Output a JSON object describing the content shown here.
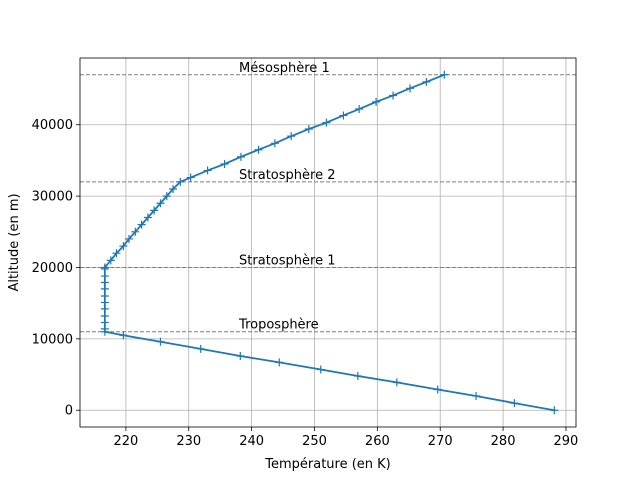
{
  "chart_data": {
    "type": "line",
    "title": "",
    "xlabel": "Température (en K)",
    "ylabel": "Altitude (en m)",
    "xlim": [
      212.7,
      291.6
    ],
    "ylim": [
      -2350,
      49350
    ],
    "xticks": [
      220,
      230,
      240,
      250,
      260,
      270,
      280,
      290
    ],
    "yticks": [
      0,
      10000,
      20000,
      30000,
      40000
    ],
    "grid": true,
    "legend": "none",
    "line_color": "#1f77b4",
    "reference_color": "#808080",
    "series": [
      {
        "marker": "+",
        "points": [
          [
            288.15,
            0
          ],
          [
            281.8,
            1000
          ],
          [
            275.7,
            2000
          ],
          [
            269.6,
            2900
          ],
          [
            263.1,
            3900
          ],
          [
            256.9,
            4800
          ],
          [
            251.0,
            5700
          ],
          [
            244.4,
            6700
          ],
          [
            238.2,
            7600
          ],
          [
            231.9,
            8600
          ],
          [
            225.5,
            9600
          ],
          [
            219.6,
            10500
          ],
          [
            216.65,
            11000
          ],
          [
            216.65,
            11400
          ],
          [
            216.65,
            12300
          ],
          [
            216.65,
            13200
          ],
          [
            216.65,
            14200
          ],
          [
            216.65,
            15100
          ],
          [
            216.65,
            16000
          ],
          [
            216.65,
            17000
          ],
          [
            216.65,
            17900
          ],
          [
            216.65,
            18800
          ],
          [
            216.65,
            19800
          ],
          [
            216.65,
            20000
          ],
          [
            217.6,
            21000
          ],
          [
            218.5,
            22000
          ],
          [
            219.6,
            23000
          ],
          [
            220.5,
            24000
          ],
          [
            221.5,
            25000
          ],
          [
            222.5,
            26000
          ],
          [
            223.5,
            27000
          ],
          [
            224.5,
            28000
          ],
          [
            225.5,
            29000
          ],
          [
            226.5,
            30000
          ],
          [
            227.5,
            31000
          ],
          [
            228.65,
            32000
          ],
          [
            230.3,
            32600
          ],
          [
            233.0,
            33600
          ],
          [
            235.7,
            34500
          ],
          [
            238.3,
            35500
          ],
          [
            241.1,
            36500
          ],
          [
            243.7,
            37400
          ],
          [
            246.3,
            38400
          ],
          [
            249.1,
            39400
          ],
          [
            251.9,
            40300
          ],
          [
            254.6,
            41300
          ],
          [
            257.1,
            42200
          ],
          [
            259.8,
            43200
          ],
          [
            262.5,
            44100
          ],
          [
            265.2,
            45100
          ],
          [
            267.8,
            46000
          ],
          [
            270.65,
            47000
          ]
        ]
      }
    ],
    "reference_lines": [
      {
        "y": 11000,
        "label": "Troposphère"
      },
      {
        "y": 20000,
        "label": "Stratosphère 1"
      },
      {
        "y": 32000,
        "label": "Stratosphère 2"
      },
      {
        "y": 47000,
        "label": "Mésosphère 1"
      }
    ]
  }
}
